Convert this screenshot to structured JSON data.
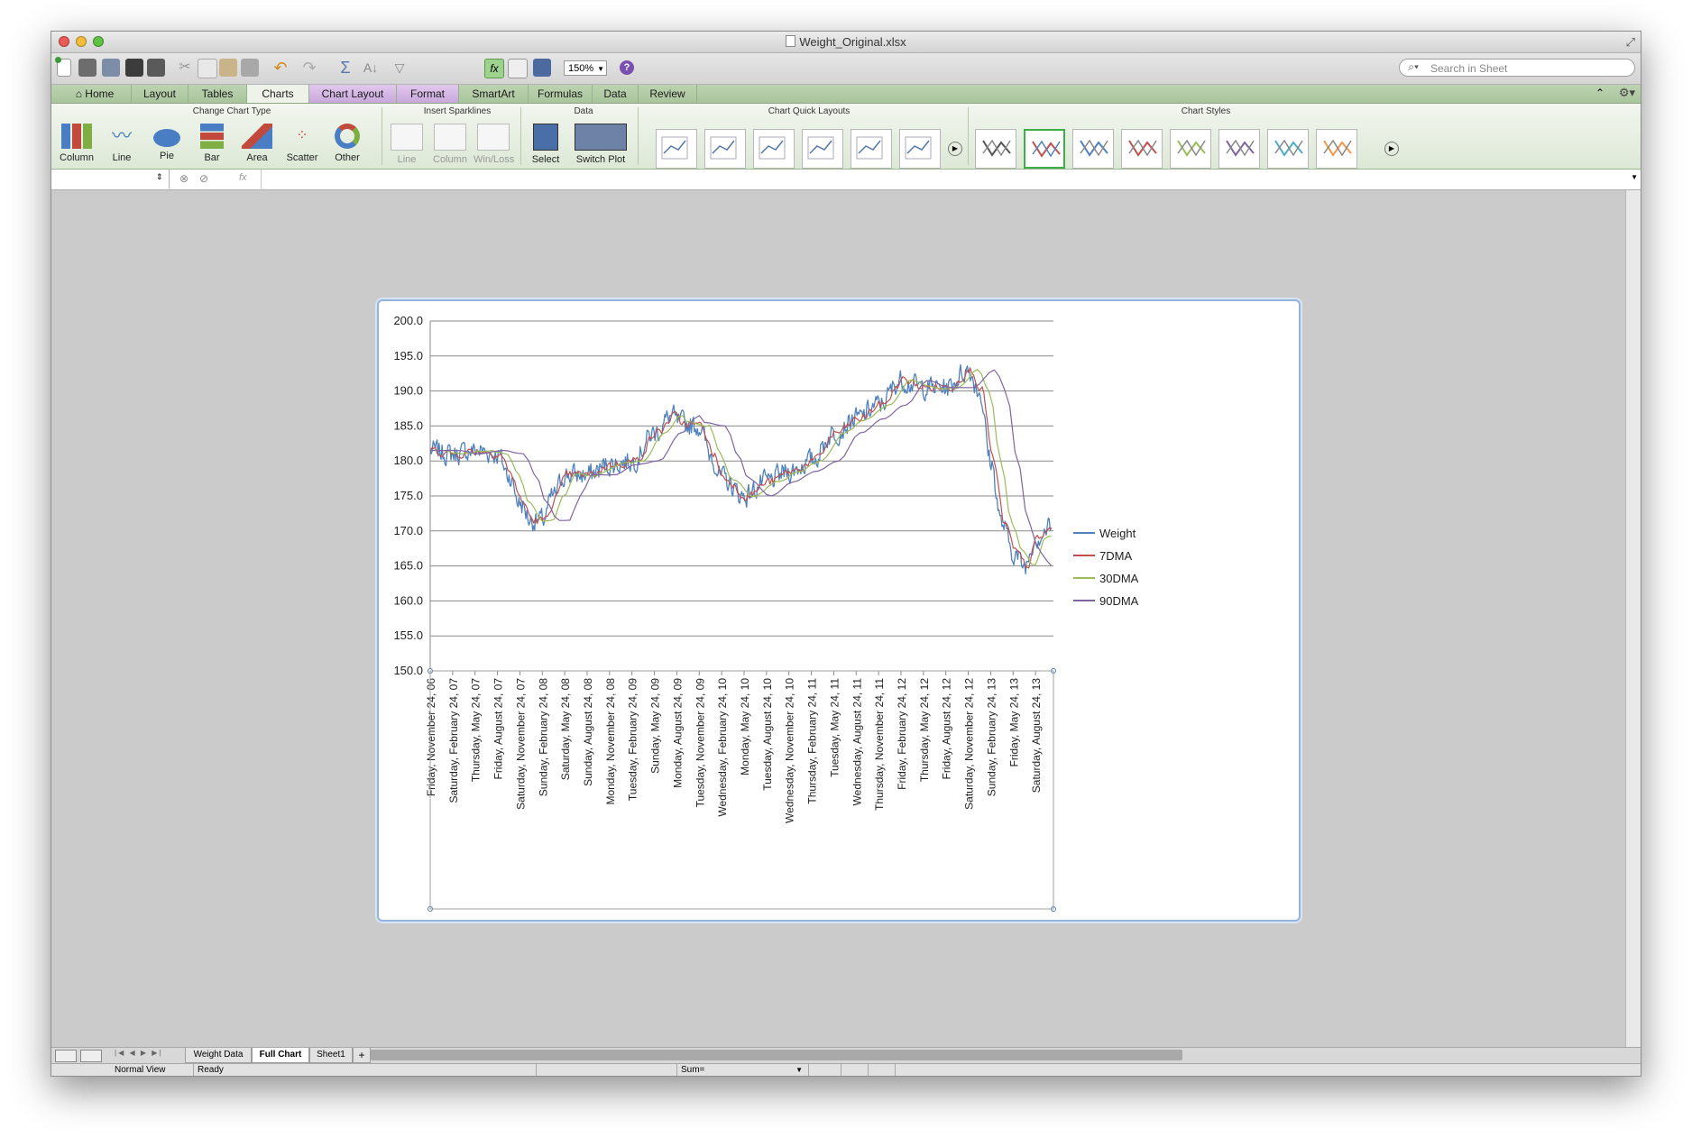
{
  "window": {
    "title": "Weight_Original.xlsx"
  },
  "toolbar": {
    "zoom": "150%",
    "search_placeholder": "Search in Sheet"
  },
  "tabs": [
    "Home",
    "Layout",
    "Tables",
    "Charts",
    "Chart Layout",
    "Format",
    "SmartArt",
    "Formulas",
    "Data",
    "Review"
  ],
  "ribbon": {
    "groups": {
      "change_chart_type": "Change Chart Type",
      "insert_sparklines": "Insert Sparklines",
      "data": "Data",
      "quick_layouts": "Chart Quick Layouts",
      "chart_styles": "Chart Styles"
    },
    "chart_types": [
      "Column",
      "Line",
      "Pie",
      "Bar",
      "Area",
      "Scatter",
      "Other"
    ],
    "sparklines": [
      "Line",
      "Column",
      "Win/Loss"
    ],
    "data_buttons": [
      "Select",
      "Switch Plot"
    ]
  },
  "formula_bar": {
    "fx": "fx"
  },
  "sheet_tabs": [
    "Weight Data",
    "Full Chart",
    "Sheet1"
  ],
  "status": {
    "view": "Normal View",
    "ready": "Ready",
    "sum": "Sum="
  },
  "colors": {
    "weight": "#4f81bd",
    "dma7": "#c0504d",
    "dma30": "#9bbb59",
    "dma90": "#8064a2"
  },
  "chart_data": {
    "type": "line",
    "ylim": [
      150,
      200
    ],
    "yticks": [
      "200.0",
      "195.0",
      "190.0",
      "185.0",
      "180.0",
      "175.0",
      "170.0",
      "165.0",
      "160.0",
      "155.0",
      "150.0"
    ],
    "categories": [
      "Friday, November 24, 06",
      "Saturday, February 24, 07",
      "Thursday, May 24, 07",
      "Friday, August 24, 07",
      "Saturday, November 24, 07",
      "Sunday, February 24, 08",
      "Saturday, May 24, 08",
      "Sunday, August 24, 08",
      "Monday, November 24, 08",
      "Tuesday, February 24, 09",
      "Sunday, May 24, 09",
      "Monday, August 24, 09",
      "Tuesday, November 24, 09",
      "Wednesday, February 24, 10",
      "Monday, May 24, 10",
      "Tuesday, August 24, 10",
      "Wednesday, November 24, 10",
      "Thursday, February 24, 11",
      "Tuesday, May 24, 11",
      "Wednesday, August 24, 11",
      "Thursday, November 24, 11",
      "Friday, February 24, 12",
      "Thursday, May 24, 12",
      "Friday, August 24, 12",
      "Saturday, November 24, 12",
      "Sunday, February 24, 13",
      "Friday, May 24, 13",
      "Saturday, August 24, 13"
    ],
    "trend_points": [
      [
        0,
        181.5
      ],
      [
        1,
        181.0
      ],
      [
        2,
        181.5
      ],
      [
        3,
        181.0
      ],
      [
        3.5,
        178
      ],
      [
        4,
        174.0
      ],
      [
        4.5,
        171.5
      ],
      [
        5,
        171.5
      ],
      [
        5.5,
        175
      ],
      [
        6,
        178.0
      ],
      [
        7,
        178.0
      ],
      [
        8,
        179.5
      ],
      [
        9,
        180.0
      ],
      [
        10,
        184.0
      ],
      [
        10.8,
        186.5
      ],
      [
        11,
        185.5
      ],
      [
        12,
        185.0
      ],
      [
        12.5,
        181
      ],
      [
        13,
        177.5
      ],
      [
        14,
        175.0
      ],
      [
        15,
        177.0
      ],
      [
        16,
        178.5
      ],
      [
        17,
        180.0
      ],
      [
        18,
        184.0
      ],
      [
        19,
        186.0
      ],
      [
        20,
        188.0
      ],
      [
        21,
        191.5
      ],
      [
        22,
        190.5
      ],
      [
        23,
        190.5
      ],
      [
        24,
        193.0
      ],
      [
        24.5,
        190
      ],
      [
        25,
        180.0
      ],
      [
        25.5,
        171
      ],
      [
        26,
        167.0
      ],
      [
        26.5,
        165
      ],
      [
        27,
        169.0
      ],
      [
        27.7,
        170.5
      ]
    ],
    "series": [
      {
        "name": "Weight",
        "lag": 0,
        "noise": 2.2,
        "count": 630
      },
      {
        "name": "7DMA",
        "lag": 0.12,
        "noise": 0.9,
        "count": 360
      },
      {
        "name": "30DMA",
        "lag": 0.45,
        "noise": 0.25,
        "count": 160
      },
      {
        "name": "90DMA",
        "lag": 1.2,
        "noise": 0.05,
        "count": 120
      }
    ]
  }
}
